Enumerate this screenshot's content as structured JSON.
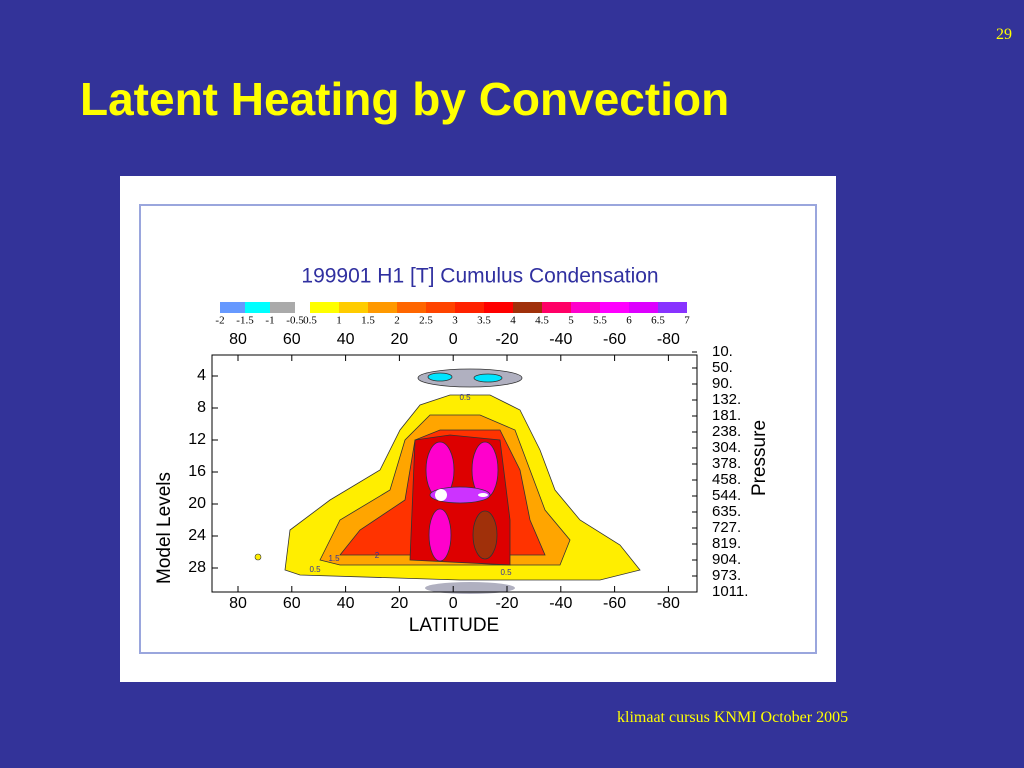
{
  "slide": {
    "number": "29",
    "title": "Latent Heating by Convection",
    "footer": "klimaat cursus KNMI  October 2005"
  },
  "figure": {
    "title": "199901 H1  [T] Cumulus Condensation",
    "colorbar_labels": [
      "-2",
      "-1.5",
      "-1",
      "-0.5",
      "0.5",
      "1",
      "1.5",
      "2",
      "2.5",
      "3",
      "3.5",
      "4",
      "4.5",
      "5",
      "5.5",
      "6",
      "6.5",
      "7"
    ],
    "colorbar_colors": [
      "#6699ff",
      "#00ffff",
      "#aaaaaa",
      null,
      "#ffff00",
      "#ffcc00",
      "#ff9900",
      "#ff6600",
      "#ff4400",
      "#ff2200",
      "#ff0000",
      "#a0300a",
      "#ff0066",
      "#ff00cc",
      "#ff00ff",
      "#dd00ff",
      "#8833ff"
    ],
    "x_ticks": [
      "80",
      "60",
      "40",
      "20",
      "0",
      "-20",
      "-40",
      "-60",
      "-80"
    ],
    "y_ticks": [
      "4",
      "8",
      "12",
      "16",
      "20",
      "24",
      "28"
    ],
    "y2_ticks": [
      "10.",
      "50.",
      "90.",
      "132.",
      "181.",
      "238.",
      "304.",
      "378.",
      "458.",
      "544.",
      "635.",
      "727.",
      "819.",
      "904.",
      "973.",
      "1011."
    ],
    "y_label": "Model Levels",
    "y2_label": "Pressure",
    "x_label": "LATITUDE",
    "contour_labels": [
      "0.5",
      "1.5",
      "2",
      "0.5",
      "0.5"
    ]
  }
}
